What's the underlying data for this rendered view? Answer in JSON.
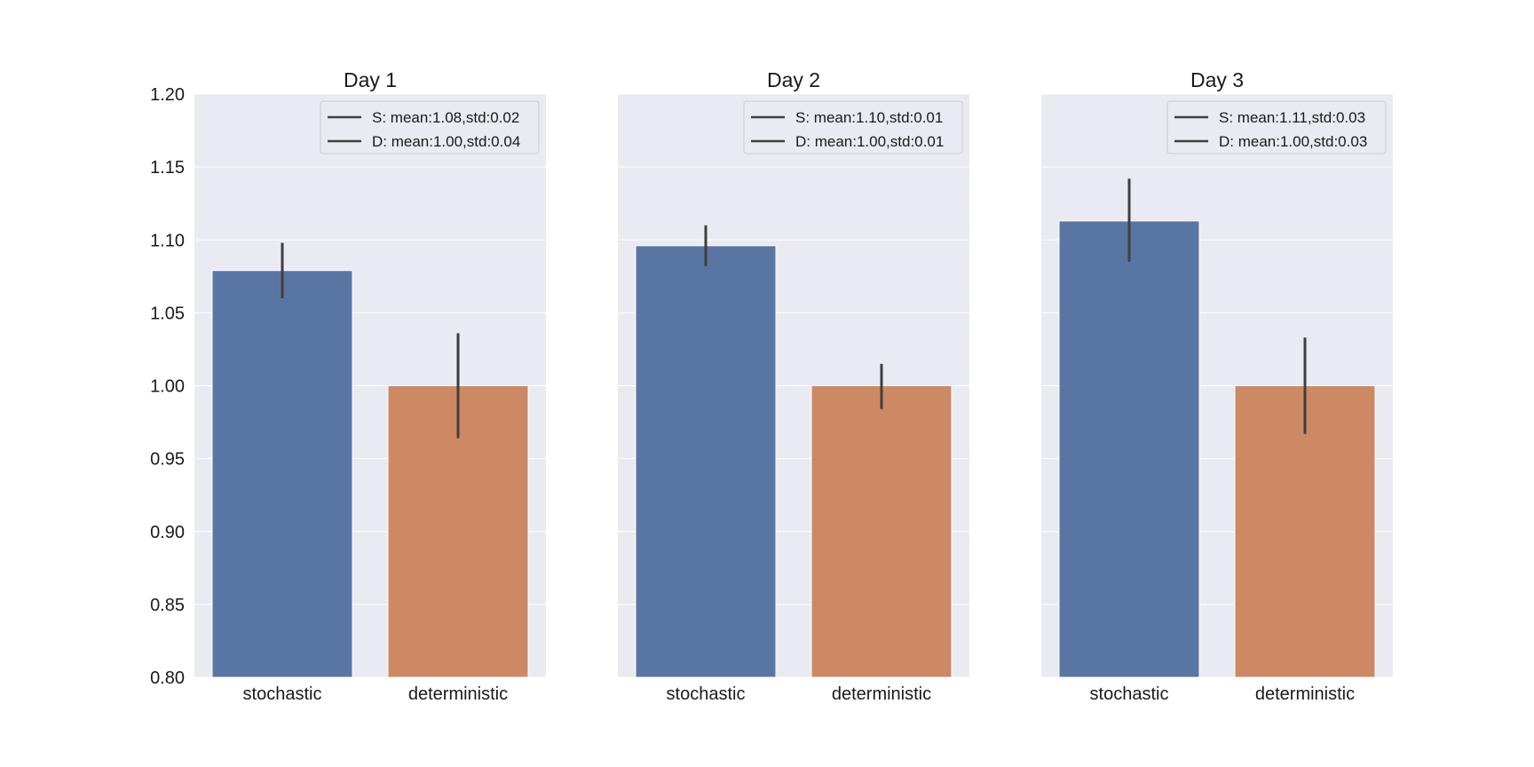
{
  "chart_data": {
    "type": "bar",
    "y_axis": {
      "ylim": [
        0.8,
        1.2
      ],
      "ticks": [
        "0.80",
        "0.85",
        "0.90",
        "0.95",
        "1.00",
        "1.05",
        "1.10",
        "1.15",
        "1.20"
      ],
      "tick_values": [
        0.8,
        0.85,
        0.9,
        0.95,
        1.0,
        1.05,
        1.1,
        1.15,
        1.2
      ]
    },
    "grid": "horizontal",
    "legend_placement": "top-right",
    "colors": {
      "stochastic": "#5975a4",
      "deterministic": "#cc8963"
    },
    "panels": [
      {
        "title": "Day 1",
        "categories": [
          "stochastic",
          "deterministic"
        ],
        "values": [
          1.079,
          1.0
        ],
        "errors": [
          [
            1.06,
            1.098
          ],
          [
            0.964,
            1.036
          ]
        ],
        "legend": [
          "S: mean:1.08,std:0.02",
          "D: mean:1.00,std:0.04"
        ]
      },
      {
        "title": "Day 2",
        "categories": [
          "stochastic",
          "deterministic"
        ],
        "values": [
          1.096,
          1.0
        ],
        "errors": [
          [
            1.082,
            1.11
          ],
          [
            0.984,
            1.015
          ]
        ],
        "legend": [
          "S: mean:1.10,std:0.01",
          "D: mean:1.00,std:0.01"
        ]
      },
      {
        "title": "Day 3",
        "categories": [
          "stochastic",
          "deterministic"
        ],
        "values": [
          1.113,
          1.0
        ],
        "errors": [
          [
            1.085,
            1.142
          ],
          [
            0.967,
            1.033
          ]
        ],
        "legend": [
          "S: mean:1.11,std:0.03",
          "D: mean:1.00,std:0.03"
        ]
      }
    ]
  }
}
